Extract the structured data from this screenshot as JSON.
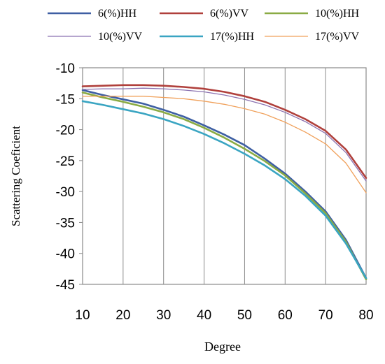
{
  "chart_data": {
    "type": "line",
    "xlabel": "Degree",
    "ylabel": "Scattering Coeficient",
    "xlim": [
      10,
      80
    ],
    "ylim": [
      -45,
      -10
    ],
    "x_ticks": [
      "10",
      "20",
      "30",
      "40",
      "50",
      "60",
      "70",
      "80"
    ],
    "y_ticks": [
      "-10",
      "-15",
      "-20",
      "-25",
      "-30",
      "-35",
      "-40",
      "-45"
    ],
    "grid": "vertical",
    "legend_position": "top",
    "x": [
      10,
      15,
      20,
      25,
      30,
      35,
      40,
      45,
      50,
      55,
      60,
      65,
      70,
      75,
      80
    ],
    "series": [
      {
        "name": "6(%)HH",
        "color": "#3e5fa3",
        "values": [
          -13.6,
          -14.4,
          -15.1,
          -15.8,
          -16.8,
          -17.9,
          -19.3,
          -20.8,
          -22.5,
          -24.7,
          -27.1,
          -30.0,
          -33.2,
          -37.8,
          -44.0
        ]
      },
      {
        "name": "6(%)VV",
        "color": "#b0403c",
        "values": [
          -13.0,
          -12.9,
          -12.8,
          -12.8,
          -12.9,
          -13.1,
          -13.4,
          -13.9,
          -14.6,
          -15.5,
          -16.8,
          -18.3,
          -20.2,
          -23.2,
          -27.8
        ]
      },
      {
        "name": "10(%)HH",
        "color": "#8aab44",
        "values": [
          -14.0,
          -14.8,
          -15.5,
          -16.3,
          -17.2,
          -18.3,
          -19.7,
          -21.3,
          -23.1,
          -25.1,
          -27.4,
          -30.3,
          -33.5,
          -38.1,
          -44.2
        ]
      },
      {
        "name": "10(%)VV",
        "color": "#8b72b0",
        "values": [
          -13.5,
          -13.4,
          -13.4,
          -13.3,
          -13.4,
          -13.6,
          -13.9,
          -14.4,
          -15.1,
          -16.0,
          -17.2,
          -18.7,
          -20.6,
          -23.7,
          -28.3
        ]
      },
      {
        "name": "17(%)HH",
        "color": "#3aa5c2",
        "values": [
          -15.4,
          -16.0,
          -16.7,
          -17.4,
          -18.3,
          -19.4,
          -20.7,
          -22.2,
          -23.9,
          -25.8,
          -28.0,
          -30.7,
          -33.9,
          -38.4,
          -44.0
        ]
      },
      {
        "name": "17(%)VV",
        "color": "#f0a05a",
        "values": [
          -14.6,
          -14.6,
          -14.6,
          -14.6,
          -14.8,
          -15.0,
          -15.4,
          -15.9,
          -16.6,
          -17.5,
          -18.8,
          -20.4,
          -22.3,
          -25.4,
          -30.2
        ]
      }
    ]
  }
}
